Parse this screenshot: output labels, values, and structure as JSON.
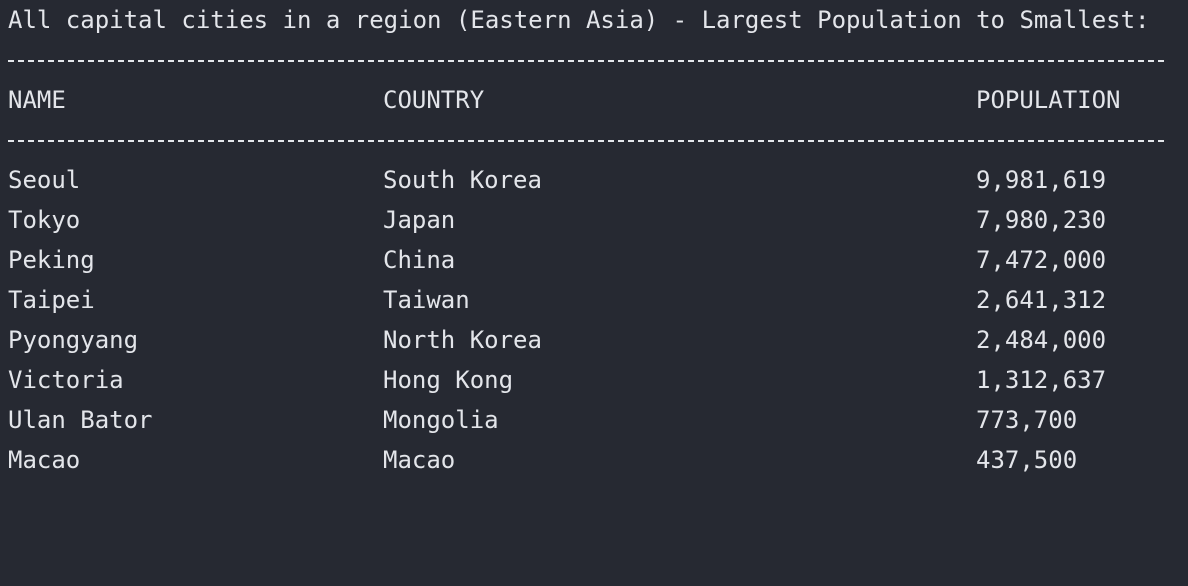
{
  "title": "All capital cities in a region (Eastern Asia) - Largest Population to Smallest:",
  "columns": {
    "name": "NAME",
    "country": "COUNTRY",
    "population": "POPULATION"
  },
  "rows": [
    {
      "name": "Seoul",
      "country": "South Korea",
      "population": "9,981,619"
    },
    {
      "name": "Tokyo",
      "country": "Japan",
      "population": "7,980,230"
    },
    {
      "name": "Peking",
      "country": "China",
      "population": "7,472,000"
    },
    {
      "name": "Taipei",
      "country": "Taiwan",
      "population": "2,641,312"
    },
    {
      "name": "Pyongyang",
      "country": "North Korea",
      "population": "2,484,000"
    },
    {
      "name": "Victoria",
      "country": "Hong Kong",
      "population": "1,312,637"
    },
    {
      "name": "Ulan Bator",
      "country": "Mongolia",
      "population": "773,700"
    },
    {
      "name": "Macao",
      "country": "Macao",
      "population": "437,500"
    }
  ]
}
